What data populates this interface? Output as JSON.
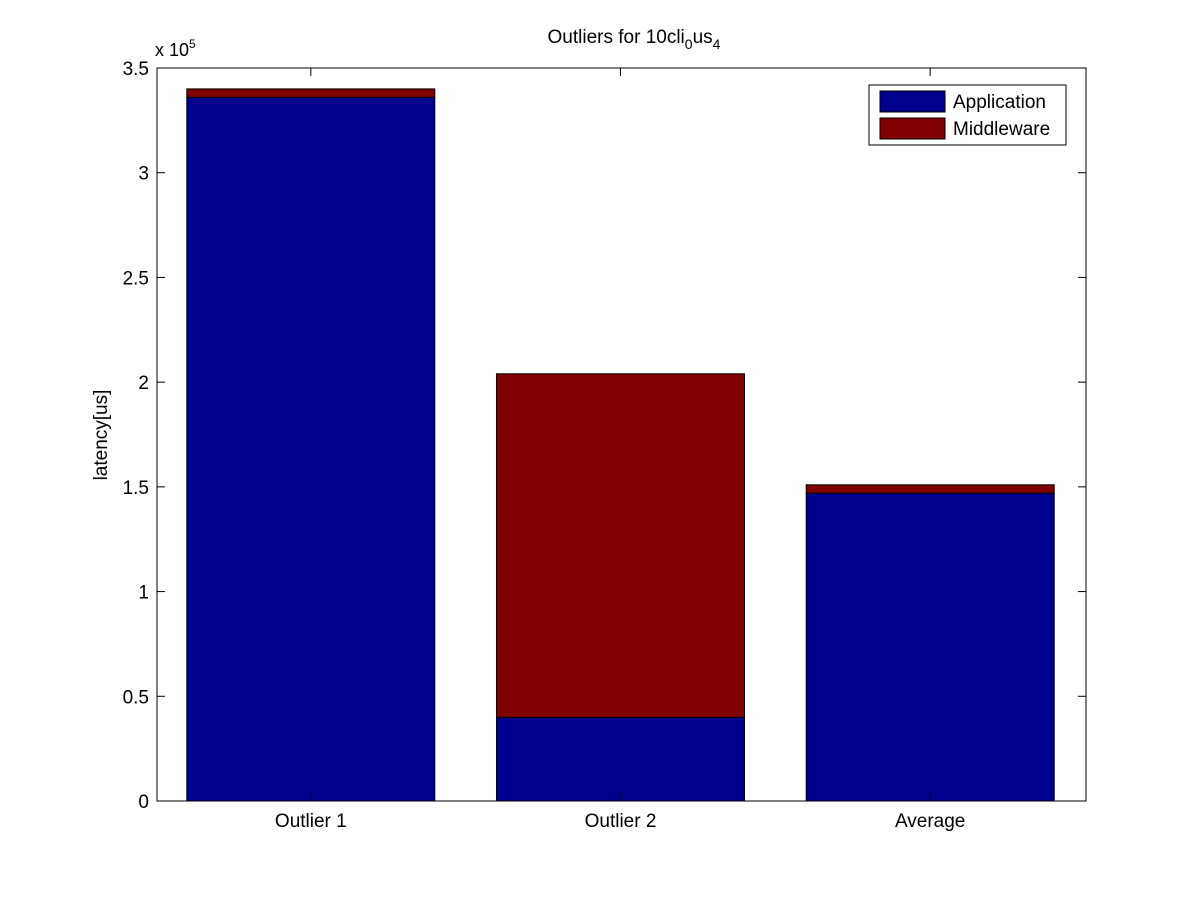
{
  "chart_data": {
    "type": "bar",
    "stacked": true,
    "title": {
      "base": "Outliers for 10cli",
      "sub1": "0",
      "mid": "us",
      "sub2": "4"
    },
    "xlabel": "",
    "ylabel": "latency[us]",
    "y_exponent_label": {
      "prefix": "x 10",
      "exponent": "5"
    },
    "categories": [
      "Outlier 1",
      "Outlier 2",
      "Average"
    ],
    "yticks": [
      0,
      0.5,
      1,
      1.5,
      2,
      2.5,
      3,
      3.5
    ],
    "ytick_labels": [
      "0",
      "0.5",
      "1",
      "1.5",
      "2",
      "2.5",
      "3",
      "3.5"
    ],
    "ylim": [
      0,
      350000
    ],
    "series": [
      {
        "name": "Application",
        "color": "#00008f",
        "values": [
          336000,
          40000,
          147000
        ]
      },
      {
        "name": "Middleware",
        "color": "#800000",
        "values": [
          4000,
          164000,
          4000
        ]
      }
    ],
    "legend_position": "top-right",
    "grid": false
  }
}
